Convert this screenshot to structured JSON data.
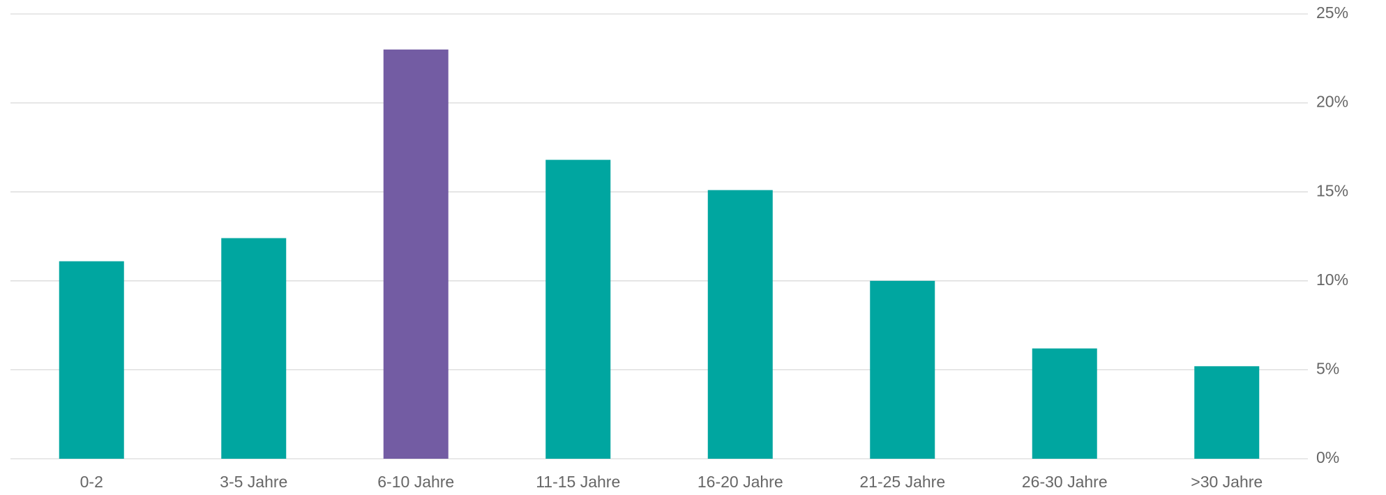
{
  "chart_data": {
    "type": "bar",
    "categories": [
      "0-2",
      "3-5 Jahre",
      "6-10 Jahre",
      "11-15 Jahre",
      "16-20 Jahre",
      "21-25 Jahre",
      "26-30 Jahre",
      ">30 Jahre"
    ],
    "values": [
      11.1,
      12.4,
      23.0,
      16.8,
      15.1,
      10.0,
      6.2,
      5.2
    ],
    "colors": [
      "#00a6a0",
      "#00a6a0",
      "#735ca3",
      "#00a6a0",
      "#00a6a0",
      "#00a6a0",
      "#00a6a0",
      "#00a6a0"
    ],
    "ylim": [
      0,
      25
    ],
    "yticks": [
      {
        "value": 0,
        "label": "0%"
      },
      {
        "value": 5,
        "label": "5%"
      },
      {
        "value": 10,
        "label": "10%"
      },
      {
        "value": 15,
        "label": "15%"
      },
      {
        "value": 20,
        "label": "20%"
      },
      {
        "value": 25,
        "label": "25%"
      }
    ],
    "grid": true
  }
}
